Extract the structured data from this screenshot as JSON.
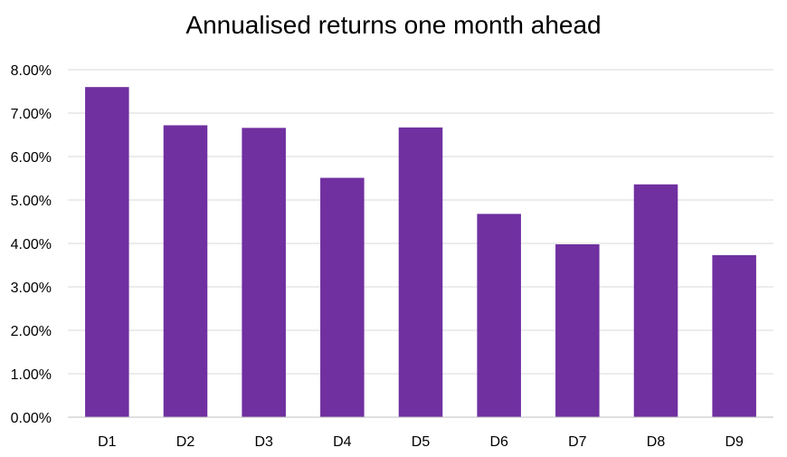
{
  "chart_data": {
    "type": "bar",
    "title": "Annualised returns one month ahead",
    "xlabel": "",
    "ylabel": "",
    "categories": [
      "D1",
      "D2",
      "D3",
      "D4",
      "D5",
      "D6",
      "D7",
      "D8",
      "D9"
    ],
    "values": [
      7.6,
      6.72,
      6.66,
      5.51,
      6.67,
      4.68,
      3.98,
      5.36,
      3.73
    ],
    "ylim": [
      0,
      8
    ],
    "yticks": [
      "0.00%",
      "1.00%",
      "2.00%",
      "3.00%",
      "4.00%",
      "5.00%",
      "6.00%",
      "7.00%",
      "8.00%"
    ],
    "grid": true,
    "legend": "none",
    "bar_color": "#7030A0",
    "grid_color": "#D9D9D9",
    "axis_color": "#BFBFBF"
  }
}
